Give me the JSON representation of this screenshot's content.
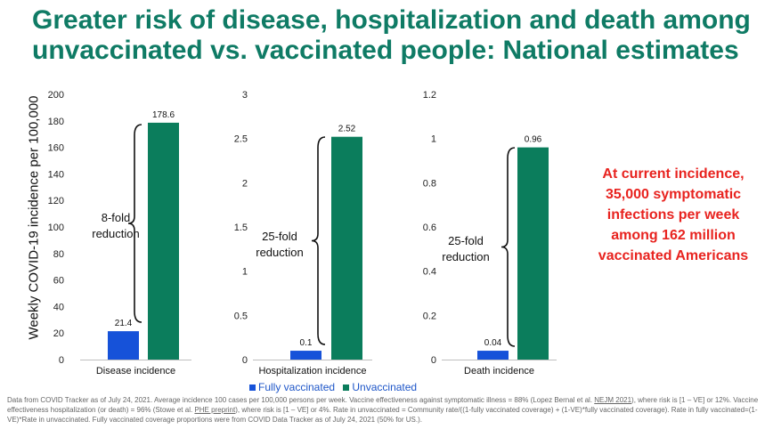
{
  "title": {
    "line1": "Greater risk of disease, hospitalization and death among",
    "line2": "unvaccinated vs. vaccinated people: National estimates"
  },
  "ylabel": "Weekly COVID-19 incidence per 100,000",
  "colors": {
    "vaccinated": "#1652d9",
    "unvaccinated": "#0b7d5c",
    "title": "#0f7b65",
    "callout": "#e8231f"
  },
  "chart_data": [
    {
      "type": "bar",
      "categories": [
        "Disease incidence"
      ],
      "series": [
        {
          "name": "Fully vaccinated",
          "values": [
            21.4
          ]
        },
        {
          "name": "Unvaccinated",
          "values": [
            178.6
          ]
        }
      ],
      "data_labels": [
        "21.4",
        "178.6"
      ],
      "yticks": [
        "0",
        "20",
        "40",
        "60",
        "80",
        "100",
        "120",
        "140",
        "160",
        "180",
        "200"
      ],
      "ylim": [
        0,
        200
      ],
      "annotation": [
        "8-fold",
        "reduction"
      ]
    },
    {
      "type": "bar",
      "categories": [
        "Hospitalization incidence"
      ],
      "series": [
        {
          "name": "Fully vaccinated",
          "values": [
            0.1
          ]
        },
        {
          "name": "Unvaccinated",
          "values": [
            2.52
          ]
        }
      ],
      "data_labels": [
        "0.1",
        "2.52"
      ],
      "yticks": [
        "0",
        "0.5",
        "1",
        "1.5",
        "2",
        "2.5",
        "3"
      ],
      "ylim": [
        0,
        3
      ],
      "annotation": [
        "25-fold",
        "reduction"
      ]
    },
    {
      "type": "bar",
      "categories": [
        "Death incidence"
      ],
      "series": [
        {
          "name": "Fully vaccinated",
          "values": [
            0.04
          ]
        },
        {
          "name": "Unvaccinated",
          "values": [
            0.96
          ]
        }
      ],
      "data_labels": [
        "0.04",
        "0.96"
      ],
      "yticks": [
        "0",
        "0.2",
        "0.4",
        "0.6",
        "0.8",
        "1",
        "1.2"
      ],
      "ylim": [
        0,
        1.2
      ],
      "annotation": [
        "25-fold",
        "reduction"
      ]
    }
  ],
  "legend": {
    "items": [
      "Fully vaccinated",
      "Unvaccinated"
    ]
  },
  "callout": {
    "lines": [
      "At current incidence,",
      "35,000 symptomatic",
      "infections per week",
      "among 162 million",
      "vaccinated Americans"
    ]
  },
  "footnote": {
    "p1": "Data from COVID Tracker as of July 24, 2021. Average incidence 100 cases per 100,000 persons per week. Vaccine effectiveness against symptomatic illness = 88% (Lopez Bernal et al. ",
    "link1": "NEJM 2021",
    "p2": "), where risk is [1 – VE] or 12%. Vaccine effectiveness hospitalization (or death) = 96% (Stowe et al. ",
    "link2": "PHE preprint",
    "p3": "), where risk is [1 – VE] or 4%.  Rate in unvaccinated = Community rate/((1-fully vaccinated coverage) + (1-VE)*fully vaccinated coverage). Rate in fully vaccinated=(1-VE)*Rate in unvaccinated. Fully vaccinated coverage proportions were from COVID Data Tracker as of July 24, 2021 (50% for US.)."
  }
}
